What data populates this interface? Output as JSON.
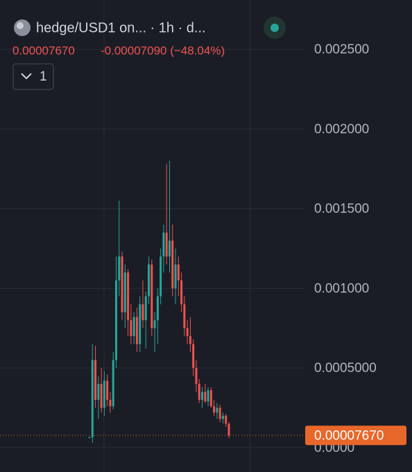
{
  "chart_data": {
    "type": "candlestick",
    "title": "hedge/USD1 on... · 1h · d...",
    "last_price": {
      "value": 7.67e-05,
      "label": "0.00007670"
    },
    "change_label": "-0.00007090 (−48.04%)",
    "indicator_count": "1",
    "up_color": "#26a69a",
    "down_color": "#ef5350",
    "price_line_color": "#e8672a",
    "grid": true,
    "ylim": [
      -0.000153,
      0.00281
    ],
    "yticks": [
      {
        "value": 0,
        "label": "0.0000"
      },
      {
        "value": 0.0005,
        "label": "0.0005000"
      },
      {
        "value": 0.001,
        "label": "0.001000"
      },
      {
        "value": 0.0015,
        "label": "0.001500"
      },
      {
        "value": 0.002,
        "label": "0.002000"
      },
      {
        "value": 0.0025,
        "label": "0.002500"
      }
    ],
    "open": [
      6e-05,
      6.5e-05,
      0.00055,
      0.0003,
      0.0004,
      0.00025,
      0.00042,
      0.0003,
      0.00026,
      0.00055,
      0.00105,
      0.0012,
      0.00085,
      0.0011,
      0.0008,
      0.0007,
      0.00082,
      0.00065,
      0.0009,
      0.0008,
      0.00095,
      0.00115,
      0.00075,
      0.0008,
      0.00095,
      0.0012,
      0.00135,
      0.0012,
      0.0013,
      0.001,
      0.00115,
      0.00105,
      0.0009,
      0.00075,
      0.0007,
      0.00065,
      0.0005,
      0.0004,
      0.0003,
      0.00035,
      0.00029,
      0.00036,
      0.00026,
      0.00022,
      0.00025,
      0.00018,
      0.0002,
      0.00015
    ],
    "high": [
      7e-05,
      0.00065,
      0.00064,
      0.00045,
      0.0005,
      0.00048,
      0.00046,
      0.00035,
      0.0006,
      0.0012,
      0.00155,
      0.00123,
      0.00115,
      0.00112,
      0.0009,
      0.00085,
      0.00088,
      0.00095,
      0.00105,
      0.00098,
      0.0012,
      0.00118,
      0.00085,
      0.001,
      0.00125,
      0.0014,
      0.00178,
      0.0018,
      0.0014,
      0.00125,
      0.0012,
      0.0011,
      0.00095,
      0.0008,
      0.00082,
      0.00068,
      0.00055,
      0.00043,
      0.00038,
      0.0004,
      0.00038,
      0.00038,
      0.0003,
      0.00028,
      0.00027,
      0.00022,
      0.00021,
      0.00016
    ],
    "low": [
      6e-05,
      3e-05,
      0.00025,
      0.00018,
      0.00022,
      0.0002,
      0.00026,
      0.00022,
      0.00024,
      0.0005,
      0.00095,
      0.0008,
      0.00075,
      0.0007,
      0.00065,
      0.00065,
      0.0006,
      0.0006,
      0.00075,
      0.00062,
      0.0009,
      0.0007,
      0.0006,
      0.00065,
      0.0009,
      0.0011,
      0.00115,
      0.0011,
      0.00095,
      0.0009,
      0.00095,
      0.00085,
      0.0007,
      0.00065,
      0.0006,
      0.00045,
      0.00035,
      0.00028,
      0.00025,
      0.00028,
      0.00026,
      0.00025,
      0.0002,
      0.00018,
      0.00016,
      0.00015,
      0.00013,
      6e-05
    ],
    "close": [
      6.5e-05,
      0.00055,
      0.0003,
      0.0004,
      0.00025,
      0.00042,
      0.0003,
      0.00026,
      0.00055,
      0.00105,
      0.0012,
      0.00085,
      0.0011,
      0.0008,
      0.0007,
      0.00082,
      0.00065,
      0.0009,
      0.0008,
      0.00095,
      0.00115,
      0.00075,
      0.0008,
      0.00095,
      0.0012,
      0.00135,
      0.0012,
      0.0013,
      0.001,
      0.00115,
      0.00105,
      0.0009,
      0.00075,
      0.0007,
      0.00065,
      0.0005,
      0.0004,
      0.0003,
      0.00035,
      0.00029,
      0.00036,
      0.00026,
      0.00022,
      0.00025,
      0.00018,
      0.0002,
      0.00015,
      7.67e-05
    ]
  }
}
